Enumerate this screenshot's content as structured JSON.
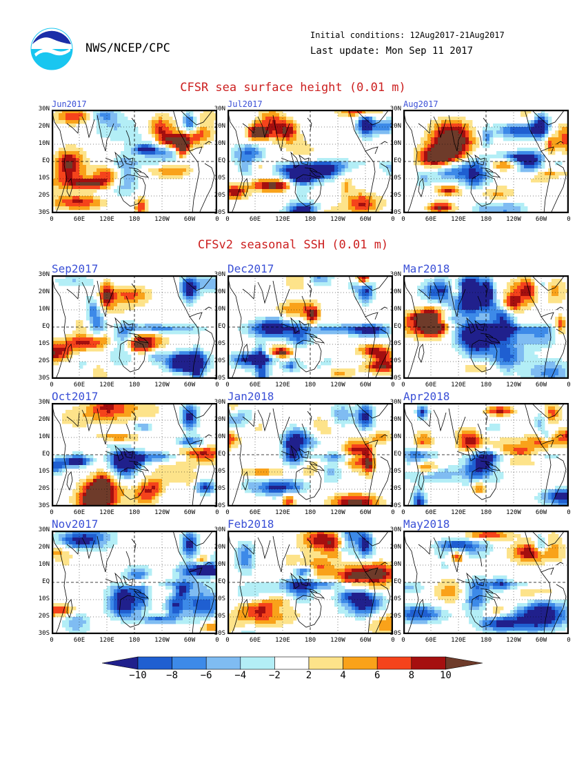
{
  "header": {
    "org": "NWS/NCEP/CPC",
    "initial_conditions": "Initial conditions: 12Aug2017-21Aug2017",
    "last_update": "Last update: Mon Sep 11 2017"
  },
  "observed": {
    "title": "CFSR sea surface height (0.01 m)",
    "panels": [
      "Jun2017",
      "Jul2017",
      "Aug2017"
    ]
  },
  "forecast": {
    "title": "CFSv2 seasonal SSH (0.01 m)",
    "panels": [
      "Sep2017",
      "Dec2017",
      "Mar2018",
      "Oct2017",
      "Jan2018",
      "Apr2018",
      "Nov2017",
      "Feb2018",
      "May2018"
    ]
  },
  "axes": {
    "lat_labels": [
      "30N",
      "20N",
      "10N",
      "EQ",
      "10S",
      "20S",
      "30S"
    ],
    "lon_labels": [
      "0",
      "60E",
      "120E",
      "180",
      "120W",
      "60W",
      "0"
    ]
  },
  "colorbar": {
    "labels": [
      "-10",
      "-8",
      "-6",
      "-4",
      "-2",
      "2",
      "4",
      "6",
      "8",
      "10"
    ],
    "colors": [
      "#20208c",
      "#1f5fd1",
      "#3d8ae8",
      "#7fbcf2",
      "#b3eef6",
      "#ffffff",
      "#fde38a",
      "#f9a21a",
      "#f5431b",
      "#a50f0f",
      "#6e3b2a"
    ]
  }
}
